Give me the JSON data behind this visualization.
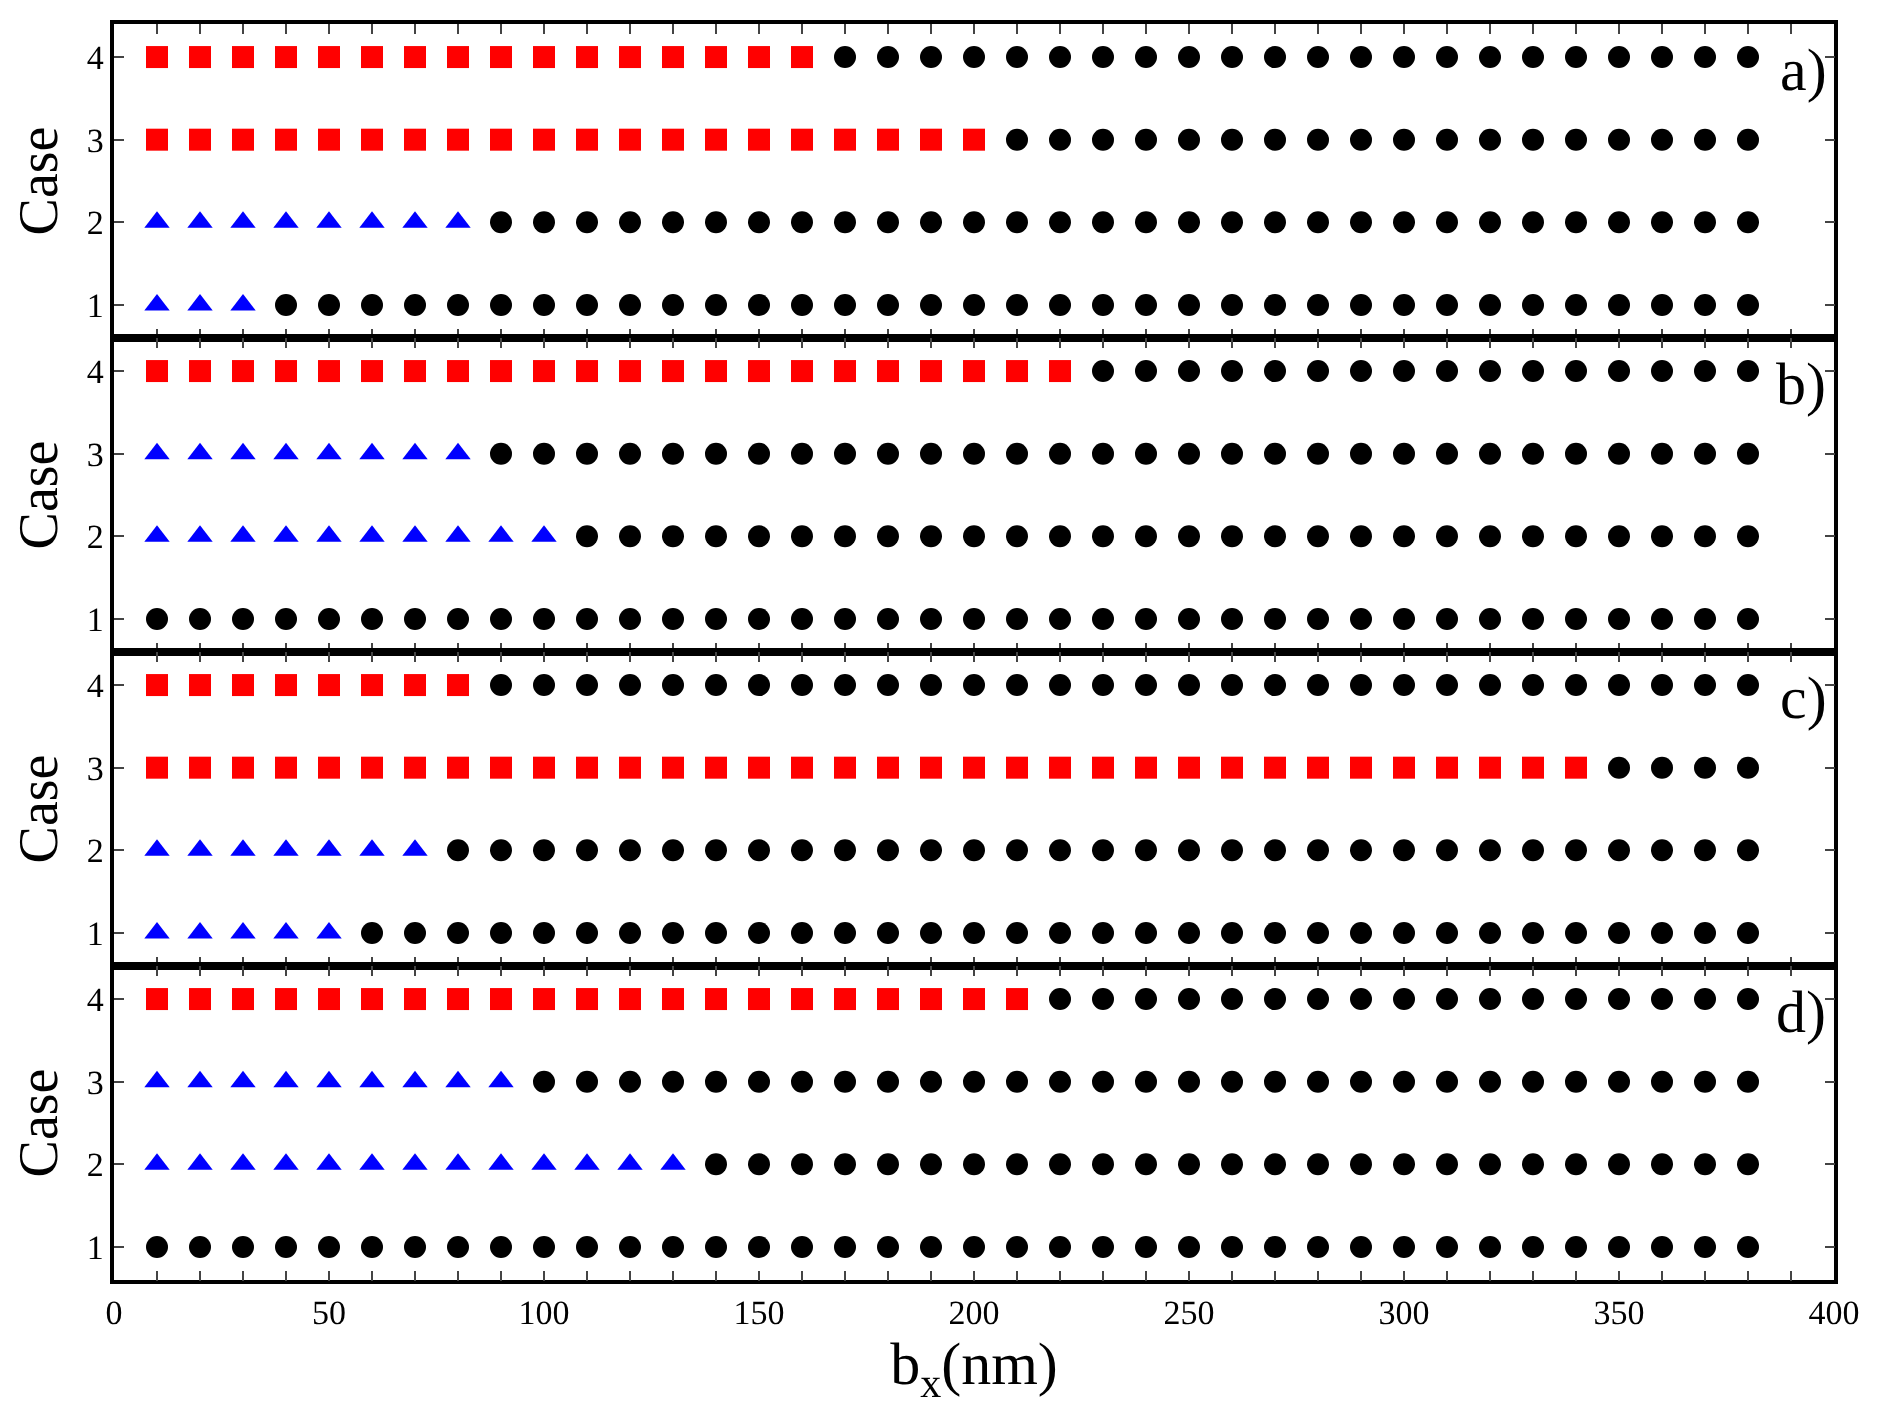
{
  "chart_data": [
    {
      "type": "scatter",
      "ylabel": "Case",
      "annotations": [
        "a)"
      ],
      "xlim": [
        0,
        400
      ],
      "ylim": [
        0.6,
        4.4
      ],
      "yticks": [
        1,
        2,
        3,
        4
      ],
      "tick_labels": "y",
      "xticks": [
        0,
        {
          "value": 10,
          "label": null
        },
        {
          "value": 20,
          "label": null
        },
        {
          "value": 30,
          "label": null
        },
        {
          "value": 40,
          "label": null
        },
        50,
        {
          "value": 60,
          "label": null
        },
        {
          "value": 70,
          "label": null
        },
        {
          "value": 80,
          "label": null
        },
        {
          "value": 90,
          "label": null
        },
        100,
        {
          "value": 110,
          "label": null
        },
        {
          "value": 120,
          "label": null
        },
        {
          "value": 130,
          "label": null
        },
        {
          "value": 140,
          "label": null
        },
        150,
        {
          "value": 160,
          "label": null
        },
        {
          "value": 170,
          "label": null
        },
        {
          "value": 180,
          "label": null
        },
        {
          "value": 190,
          "label": null
        },
        200,
        {
          "value": 210,
          "label": null
        },
        {
          "value": 220,
          "label": null
        },
        {
          "value": 230,
          "label": null
        },
        {
          "value": 240,
          "label": null
        },
        250,
        {
          "value": 260,
          "label": null
        },
        {
          "value": 270,
          "label": null
        },
        {
          "value": 280,
          "label": null
        },
        {
          "value": 290,
          "label": null
        },
        300,
        {
          "value": 310,
          "label": null
        },
        {
          "value": 320,
          "label": null
        },
        {
          "value": 330,
          "label": null
        },
        {
          "value": 340,
          "label": null
        },
        350,
        {
          "value": 360,
          "label": null
        },
        {
          "value": 370,
          "label": null
        },
        {
          "value": 380,
          "label": null
        },
        {
          "value": 390,
          "label": null
        },
        400
      ],
      "series": [
        {
          "color": "#ff0000",
          "marker": "square",
          "x": [
            10,
            20,
            30,
            40,
            50,
            60,
            70,
            80,
            90,
            100,
            110,
            120,
            130,
            140,
            150,
            160,
            10,
            20,
            30,
            40,
            50,
            60,
            70,
            80,
            90,
            100,
            110,
            120,
            130,
            140,
            150,
            160,
            170,
            180,
            190,
            200
          ],
          "values": [
            4,
            4,
            4,
            4,
            4,
            4,
            4,
            4,
            4,
            4,
            4,
            4,
            4,
            4,
            4,
            4,
            3,
            3,
            3,
            3,
            3,
            3,
            3,
            3,
            3,
            3,
            3,
            3,
            3,
            3,
            3,
            3,
            3,
            3,
            3,
            3
          ]
        },
        {
          "color": "#0000ff",
          "marker": "triangle",
          "x": [
            10,
            20,
            30,
            40,
            50,
            60,
            70,
            80,
            10,
            20,
            30
          ],
          "values": [
            2,
            2,
            2,
            2,
            2,
            2,
            2,
            2,
            1,
            1,
            1
          ]
        },
        {
          "color": "#000000",
          "marker": "circle",
          "x": [
            170,
            180,
            190,
            200,
            210,
            220,
            230,
            240,
            250,
            260,
            270,
            280,
            290,
            300,
            310,
            320,
            330,
            340,
            350,
            360,
            370,
            380,
            210,
            220,
            230,
            240,
            250,
            260,
            270,
            280,
            290,
            300,
            310,
            320,
            330,
            340,
            350,
            360,
            370,
            380,
            90,
            100,
            110,
            120,
            130,
            140,
            150,
            160,
            170,
            180,
            190,
            200,
            210,
            220,
            230,
            240,
            250,
            260,
            270,
            280,
            290,
            300,
            310,
            320,
            330,
            340,
            350,
            360,
            370,
            380,
            40,
            50,
            60,
            70,
            80,
            90,
            100,
            110,
            120,
            130,
            140,
            150,
            160,
            170,
            180,
            190,
            200,
            210,
            220,
            230,
            240,
            250,
            260,
            270,
            280,
            290,
            300,
            310,
            320,
            330,
            340,
            350,
            360,
            370,
            380
          ],
          "values": [
            4,
            4,
            4,
            4,
            4,
            4,
            4,
            4,
            4,
            4,
            4,
            4,
            4,
            4,
            4,
            4,
            4,
            4,
            4,
            4,
            4,
            4,
            3,
            3,
            3,
            3,
            3,
            3,
            3,
            3,
            3,
            3,
            3,
            3,
            3,
            3,
            3,
            3,
            3,
            3,
            2,
            2,
            2,
            2,
            2,
            2,
            2,
            2,
            2,
            2,
            2,
            2,
            2,
            2,
            2,
            2,
            2,
            2,
            2,
            2,
            2,
            2,
            2,
            2,
            2,
            2,
            2,
            2,
            2,
            2,
            1,
            1,
            1,
            1,
            1,
            1,
            1,
            1,
            1,
            1,
            1,
            1,
            1,
            1,
            1,
            1,
            1,
            1,
            1,
            1,
            1,
            1,
            1,
            1,
            1,
            1,
            1,
            1,
            1,
            1,
            1,
            1,
            1,
            1,
            1
          ]
        }
      ]
    },
    {
      "type": "scatter",
      "ylabel": "Case",
      "annotations": [
        "b)"
      ],
      "xlim": [
        0,
        400
      ],
      "ylim": [
        0.6,
        4.4
      ],
      "yticks": [
        1,
        2,
        3,
        4
      ],
      "tick_labels": "y",
      "xticks": [
        0,
        {
          "value": 10,
          "label": null
        },
        {
          "value": 20,
          "label": null
        },
        {
          "value": 30,
          "label": null
        },
        {
          "value": 40,
          "label": null
        },
        50,
        {
          "value": 60,
          "label": null
        },
        {
          "value": 70,
          "label": null
        },
        {
          "value": 80,
          "label": null
        },
        {
          "value": 90,
          "label": null
        },
        100,
        {
          "value": 110,
          "label": null
        },
        {
          "value": 120,
          "label": null
        },
        {
          "value": 130,
          "label": null
        },
        {
          "value": 140,
          "label": null
        },
        150,
        {
          "value": 160,
          "label": null
        },
        {
          "value": 170,
          "label": null
        },
        {
          "value": 180,
          "label": null
        },
        {
          "value": 190,
          "label": null
        },
        200,
        {
          "value": 210,
          "label": null
        },
        {
          "value": 220,
          "label": null
        },
        {
          "value": 230,
          "label": null
        },
        {
          "value": 240,
          "label": null
        },
        250,
        {
          "value": 260,
          "label": null
        },
        {
          "value": 270,
          "label": null
        },
        {
          "value": 280,
          "label": null
        },
        {
          "value": 290,
          "label": null
        },
        300,
        {
          "value": 310,
          "label": null
        },
        {
          "value": 320,
          "label": null
        },
        {
          "value": 330,
          "label": null
        },
        {
          "value": 340,
          "label": null
        },
        350,
        {
          "value": 360,
          "label": null
        },
        {
          "value": 370,
          "label": null
        },
        {
          "value": 380,
          "label": null
        },
        {
          "value": 390,
          "label": null
        },
        400
      ],
      "series": [
        {
          "color": "#ff0000",
          "marker": "square",
          "x": [
            10,
            20,
            30,
            40,
            50,
            60,
            70,
            80,
            90,
            100,
            110,
            120,
            130,
            140,
            150,
            160,
            170,
            180,
            190,
            200,
            210,
            220
          ],
          "values": [
            4,
            4,
            4,
            4,
            4,
            4,
            4,
            4,
            4,
            4,
            4,
            4,
            4,
            4,
            4,
            4,
            4,
            4,
            4,
            4,
            4,
            4
          ]
        },
        {
          "color": "#0000ff",
          "marker": "triangle",
          "x": [
            10,
            20,
            30,
            40,
            50,
            60,
            70,
            80,
            10,
            20,
            30,
            40,
            50,
            60,
            70,
            80,
            90,
            100
          ],
          "values": [
            3,
            3,
            3,
            3,
            3,
            3,
            3,
            3,
            2,
            2,
            2,
            2,
            2,
            2,
            2,
            2,
            2,
            2
          ]
        },
        {
          "color": "#000000",
          "marker": "circle",
          "x": [
            230,
            240,
            250,
            260,
            270,
            280,
            290,
            300,
            310,
            320,
            330,
            340,
            350,
            360,
            370,
            380,
            90,
            100,
            110,
            120,
            130,
            140,
            150,
            160,
            170,
            180,
            190,
            200,
            210,
            220,
            230,
            240,
            250,
            260,
            270,
            280,
            290,
            300,
            310,
            320,
            330,
            340,
            350,
            360,
            370,
            380,
            110,
            120,
            130,
            140,
            150,
            160,
            170,
            180,
            190,
            200,
            210,
            220,
            230,
            240,
            250,
            260,
            270,
            280,
            290,
            300,
            310,
            320,
            330,
            340,
            350,
            360,
            370,
            380,
            10,
            20,
            30,
            40,
            50,
            60,
            70,
            80,
            90,
            100,
            110,
            120,
            130,
            140,
            150,
            160,
            170,
            180,
            190,
            200,
            210,
            220,
            230,
            240,
            250,
            260,
            270,
            280,
            290,
            300,
            310,
            320,
            330,
            340,
            350,
            360,
            370,
            380
          ],
          "values": [
            4,
            4,
            4,
            4,
            4,
            4,
            4,
            4,
            4,
            4,
            4,
            4,
            4,
            4,
            4,
            4,
            3,
            3,
            3,
            3,
            3,
            3,
            3,
            3,
            3,
            3,
            3,
            3,
            3,
            3,
            3,
            3,
            3,
            3,
            3,
            3,
            3,
            3,
            3,
            3,
            3,
            3,
            3,
            3,
            3,
            3,
            2,
            2,
            2,
            2,
            2,
            2,
            2,
            2,
            2,
            2,
            2,
            2,
            2,
            2,
            2,
            2,
            2,
            2,
            2,
            2,
            2,
            2,
            2,
            2,
            2,
            2,
            2,
            2,
            1,
            1,
            1,
            1,
            1,
            1,
            1,
            1,
            1,
            1,
            1,
            1,
            1,
            1,
            1,
            1,
            1,
            1,
            1,
            1,
            1,
            1,
            1,
            1,
            1,
            1,
            1,
            1,
            1,
            1,
            1,
            1,
            1,
            1,
            1,
            1,
            1,
            1
          ]
        }
      ]
    },
    {
      "type": "scatter",
      "ylabel": "Case",
      "annotations": [
        "c)"
      ],
      "xlim": [
        0,
        400
      ],
      "ylim": [
        0.6,
        4.4
      ],
      "yticks": [
        1,
        2,
        3,
        4
      ],
      "tick_labels": "y",
      "xticks": [
        0,
        {
          "value": 10,
          "label": null
        },
        {
          "value": 20,
          "label": null
        },
        {
          "value": 30,
          "label": null
        },
        {
          "value": 40,
          "label": null
        },
        50,
        {
          "value": 60,
          "label": null
        },
        {
          "value": 70,
          "label": null
        },
        {
          "value": 80,
          "label": null
        },
        {
          "value": 90,
          "label": null
        },
        100,
        {
          "value": 110,
          "label": null
        },
        {
          "value": 120,
          "label": null
        },
        {
          "value": 130,
          "label": null
        },
        {
          "value": 140,
          "label": null
        },
        150,
        {
          "value": 160,
          "label": null
        },
        {
          "value": 170,
          "label": null
        },
        {
          "value": 180,
          "label": null
        },
        {
          "value": 190,
          "label": null
        },
        200,
        {
          "value": 210,
          "label": null
        },
        {
          "value": 220,
          "label": null
        },
        {
          "value": 230,
          "label": null
        },
        {
          "value": 240,
          "label": null
        },
        250,
        {
          "value": 260,
          "label": null
        },
        {
          "value": 270,
          "label": null
        },
        {
          "value": 280,
          "label": null
        },
        {
          "value": 290,
          "label": null
        },
        300,
        {
          "value": 310,
          "label": null
        },
        {
          "value": 320,
          "label": null
        },
        {
          "value": 330,
          "label": null
        },
        {
          "value": 340,
          "label": null
        },
        350,
        {
          "value": 360,
          "label": null
        },
        {
          "value": 370,
          "label": null
        },
        {
          "value": 380,
          "label": null
        },
        {
          "value": 390,
          "label": null
        },
        400
      ],
      "series": [
        {
          "color": "#ff0000",
          "marker": "square",
          "x": [
            10,
            20,
            30,
            40,
            50,
            60,
            70,
            80,
            10,
            20,
            30,
            40,
            50,
            60,
            70,
            80,
            90,
            100,
            110,
            120,
            130,
            140,
            150,
            160,
            170,
            180,
            190,
            200,
            210,
            220,
            230,
            240,
            250,
            260,
            270,
            280,
            290,
            300,
            310,
            320,
            330,
            340
          ],
          "values": [
            4,
            4,
            4,
            4,
            4,
            4,
            4,
            4,
            3,
            3,
            3,
            3,
            3,
            3,
            3,
            3,
            3,
            3,
            3,
            3,
            3,
            3,
            3,
            3,
            3,
            3,
            3,
            3,
            3,
            3,
            3,
            3,
            3,
            3,
            3,
            3,
            3,
            3,
            3,
            3,
            3,
            3
          ]
        },
        {
          "color": "#0000ff",
          "marker": "triangle",
          "x": [
            10,
            20,
            30,
            40,
            50,
            60,
            70,
            10,
            20,
            30,
            40,
            50
          ],
          "values": [
            2,
            2,
            2,
            2,
            2,
            2,
            2,
            1,
            1,
            1,
            1,
            1
          ]
        },
        {
          "color": "#000000",
          "marker": "circle",
          "x": [
            90,
            100,
            110,
            120,
            130,
            140,
            150,
            160,
            170,
            180,
            190,
            200,
            210,
            220,
            230,
            240,
            250,
            260,
            270,
            280,
            290,
            300,
            310,
            320,
            330,
            340,
            350,
            360,
            370,
            380,
            350,
            360,
            370,
            380,
            80,
            90,
            100,
            110,
            120,
            130,
            140,
            150,
            160,
            170,
            180,
            190,
            200,
            210,
            220,
            230,
            240,
            250,
            260,
            270,
            280,
            290,
            300,
            310,
            320,
            330,
            340,
            350,
            360,
            370,
            380,
            60,
            70,
            80,
            90,
            100,
            110,
            120,
            130,
            140,
            150,
            160,
            170,
            180,
            190,
            200,
            210,
            220,
            230,
            240,
            250,
            260,
            270,
            280,
            290,
            300,
            310,
            320,
            330,
            340,
            350,
            360,
            370,
            380
          ],
          "values": [
            4,
            4,
            4,
            4,
            4,
            4,
            4,
            4,
            4,
            4,
            4,
            4,
            4,
            4,
            4,
            4,
            4,
            4,
            4,
            4,
            4,
            4,
            4,
            4,
            4,
            4,
            4,
            4,
            4,
            4,
            3,
            3,
            3,
            3,
            2,
            2,
            2,
            2,
            2,
            2,
            2,
            2,
            2,
            2,
            2,
            2,
            2,
            2,
            2,
            2,
            2,
            2,
            2,
            2,
            2,
            2,
            2,
            2,
            2,
            2,
            2,
            2,
            2,
            2,
            2,
            1,
            1,
            1,
            1,
            1,
            1,
            1,
            1,
            1,
            1,
            1,
            1,
            1,
            1,
            1,
            1,
            1,
            1,
            1,
            1,
            1,
            1,
            1,
            1,
            1,
            1,
            1,
            1,
            1,
            1,
            1,
            1,
            1
          ]
        }
      ]
    },
    {
      "type": "scatter",
      "ylabel": "Case",
      "xlabel": "b$_{x}$(nm)",
      "annotations": [
        "d)"
      ],
      "xlim": [
        0,
        400
      ],
      "ylim": [
        0.6,
        4.4
      ],
      "yticks": [
        1,
        2,
        3,
        4
      ],
      "xticks": [
        0,
        {
          "value": 10,
          "label": null
        },
        {
          "value": 20,
          "label": null
        },
        {
          "value": 30,
          "label": null
        },
        {
          "value": 40,
          "label": null
        },
        50,
        {
          "value": 60,
          "label": null
        },
        {
          "value": 70,
          "label": null
        },
        {
          "value": 80,
          "label": null
        },
        {
          "value": 90,
          "label": null
        },
        100,
        {
          "value": 110,
          "label": null
        },
        {
          "value": 120,
          "label": null
        },
        {
          "value": 130,
          "label": null
        },
        {
          "value": 140,
          "label": null
        },
        150,
        {
          "value": 160,
          "label": null
        },
        {
          "value": 170,
          "label": null
        },
        {
          "value": 180,
          "label": null
        },
        {
          "value": 190,
          "label": null
        },
        200,
        {
          "value": 210,
          "label": null
        },
        {
          "value": 220,
          "label": null
        },
        {
          "value": 230,
          "label": null
        },
        {
          "value": 240,
          "label": null
        },
        250,
        {
          "value": 260,
          "label": null
        },
        {
          "value": 270,
          "label": null
        },
        {
          "value": 280,
          "label": null
        },
        {
          "value": 290,
          "label": null
        },
        300,
        {
          "value": 310,
          "label": null
        },
        {
          "value": 320,
          "label": null
        },
        {
          "value": 330,
          "label": null
        },
        {
          "value": 340,
          "label": null
        },
        350,
        {
          "value": 360,
          "label": null
        },
        {
          "value": 370,
          "label": null
        },
        {
          "value": 380,
          "label": null
        },
        {
          "value": 390,
          "label": null
        },
        400
      ],
      "series": [
        {
          "color": "#ff0000",
          "marker": "square",
          "x": [
            10,
            20,
            30,
            40,
            50,
            60,
            70,
            80,
            90,
            100,
            110,
            120,
            130,
            140,
            150,
            160,
            170,
            180,
            190,
            200,
            210
          ],
          "values": [
            4,
            4,
            4,
            4,
            4,
            4,
            4,
            4,
            4,
            4,
            4,
            4,
            4,
            4,
            4,
            4,
            4,
            4,
            4,
            4,
            4
          ]
        },
        {
          "color": "#0000ff",
          "marker": "triangle",
          "x": [
            10,
            20,
            30,
            40,
            50,
            60,
            70,
            80,
            90,
            10,
            20,
            30,
            40,
            50,
            60,
            70,
            80,
            90,
            100,
            110,
            120,
            130
          ],
          "values": [
            3,
            3,
            3,
            3,
            3,
            3,
            3,
            3,
            3,
            2,
            2,
            2,
            2,
            2,
            2,
            2,
            2,
            2,
            2,
            2,
            2,
            2
          ]
        },
        {
          "color": "#000000",
          "marker": "circle",
          "x": [
            220,
            230,
            240,
            250,
            260,
            270,
            280,
            290,
            300,
            310,
            320,
            330,
            340,
            350,
            360,
            370,
            380,
            100,
            110,
            120,
            130,
            140,
            150,
            160,
            170,
            180,
            190,
            200,
            210,
            220,
            230,
            240,
            250,
            260,
            270,
            280,
            290,
            300,
            310,
            320,
            330,
            340,
            350,
            360,
            370,
            380,
            140,
            150,
            160,
            170,
            180,
            190,
            200,
            210,
            220,
            230,
            240,
            250,
            260,
            270,
            280,
            290,
            300,
            310,
            320,
            330,
            340,
            350,
            360,
            370,
            380,
            10,
            20,
            30,
            40,
            50,
            60,
            70,
            80,
            90,
            100,
            110,
            120,
            130,
            140,
            150,
            160,
            170,
            180,
            190,
            200,
            210,
            220,
            230,
            240,
            250,
            260,
            270,
            280,
            290,
            300,
            310,
            320,
            330,
            340,
            350,
            360,
            370,
            380
          ],
          "values": [
            4,
            4,
            4,
            4,
            4,
            4,
            4,
            4,
            4,
            4,
            4,
            4,
            4,
            4,
            4,
            4,
            4,
            3,
            3,
            3,
            3,
            3,
            3,
            3,
            3,
            3,
            3,
            3,
            3,
            3,
            3,
            3,
            3,
            3,
            3,
            3,
            3,
            3,
            3,
            3,
            3,
            3,
            3,
            3,
            3,
            3,
            2,
            2,
            2,
            2,
            2,
            2,
            2,
            2,
            2,
            2,
            2,
            2,
            2,
            2,
            2,
            2,
            2,
            2,
            2,
            2,
            2,
            2,
            2,
            2,
            2,
            1,
            1,
            1,
            1,
            1,
            1,
            1,
            1,
            1,
            1,
            1,
            1,
            1,
            1,
            1,
            1,
            1,
            1,
            1,
            1,
            1,
            1,
            1,
            1,
            1,
            1,
            1,
            1,
            1,
            1,
            1,
            1,
            1,
            1,
            1,
            1,
            1,
            1
          ]
        }
      ]
    }
  ]
}
